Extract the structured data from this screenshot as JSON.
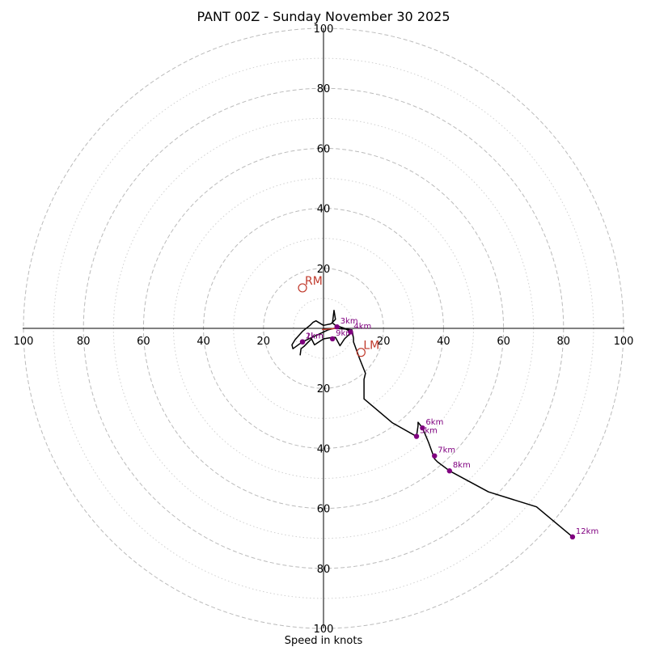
{
  "chart_data": {
    "type": "hodograph",
    "title": "PANT 00Z - Sunday November 30 2025",
    "xlabel": "Speed in knots",
    "rlim": [
      0,
      100
    ],
    "ring_major": [
      20,
      40,
      60,
      80,
      100
    ],
    "ring_minor": [
      10,
      30,
      50,
      70,
      90
    ],
    "tick_labels": {
      "top": [
        "20",
        "40",
        "60",
        "80",
        "100"
      ],
      "bottom": [
        "20",
        "40",
        "60",
        "80",
        "100"
      ],
      "left": [
        "20",
        "40",
        "60",
        "80",
        "100"
      ],
      "right": [
        "20",
        "40",
        "60",
        "80",
        "100"
      ]
    },
    "profile_uv": [
      [
        -7.8,
        9.0
      ],
      [
        -7.5,
        6.8
      ],
      [
        -6.5,
        6.0
      ],
      [
        -5,
        4.5
      ],
      [
        -4,
        3.5
      ],
      [
        -3,
        5.5
      ],
      [
        0,
        3.5
      ],
      [
        3,
        3
      ],
      [
        4,
        3
      ],
      [
        5.5,
        5.8
      ],
      [
        7,
        3.5
      ],
      [
        9,
        1.6
      ],
      [
        8,
        0.5
      ],
      [
        7,
        0
      ],
      [
        4,
        -1
      ],
      [
        3,
        -1.8
      ],
      [
        3.5,
        -6
      ],
      [
        4,
        -3
      ],
      [
        2.5,
        -1.5
      ],
      [
        0,
        -1
      ],
      [
        -2.5,
        -2.5
      ],
      [
        -3.5,
        -2
      ],
      [
        -4.5,
        -1
      ],
      [
        -7,
        1
      ],
      [
        -9.5,
        3.8
      ],
      [
        -10.5,
        5.5
      ],
      [
        -10.2,
        6.8
      ],
      [
        -7,
        4.5
      ],
      [
        1.5,
        0.5
      ],
      [
        3.5,
        0
      ],
      [
        7,
        0.2
      ],
      [
        9.5,
        0.5
      ],
      [
        10,
        3.3
      ],
      [
        10,
        4.5
      ],
      [
        12,
        10
      ],
      [
        14,
        15
      ],
      [
        13.5,
        17
      ],
      [
        13.5,
        23.5
      ],
      [
        23,
        31.5
      ],
      [
        31,
        36
      ],
      [
        31.5,
        32.5
      ],
      [
        31.5,
        31.3
      ],
      [
        33,
        33.2
      ],
      [
        35,
        38
      ],
      [
        37,
        43.5
      ],
      [
        38,
        44.5
      ],
      [
        42,
        47.5
      ],
      [
        55,
        54.5
      ],
      [
        71,
        59.5
      ],
      [
        83,
        69.5
      ]
    ],
    "height_markers": [
      {
        "label": "1km",
        "u": -7,
        "v": 4.5
      },
      {
        "label": "2km",
        "u": -7,
        "v": 4.5
      },
      {
        "label": "3km",
        "u": 4.5,
        "v": -0.5
      },
      {
        "label": "4km",
        "u": 9,
        "v": 1.2
      },
      {
        "label": "5km",
        "u": 31,
        "v": 36
      },
      {
        "label": "6km",
        "u": 33,
        "v": 33.2
      },
      {
        "label": "7km",
        "u": 37,
        "v": 42.5
      },
      {
        "label": "8km",
        "u": 42,
        "v": 47.5
      },
      {
        "label": "9km",
        "u": 3,
        "v": 3.5
      },
      {
        "label": "12km",
        "u": 83,
        "v": 69.5
      }
    ],
    "storm_motion": [
      {
        "label": "LM",
        "u": 12.5,
        "v": 8
      },
      {
        "label": "RM",
        "u": -7,
        "v": -13.5
      }
    ],
    "mean_wind_vector": [
      [
        -0.5,
        0.4
      ],
      [
        4.5,
        0
      ]
    ]
  },
  "colors": {
    "line": "#000000",
    "marker": "#800080",
    "motion": "#c0392b",
    "grid_major": "#bbbbbb",
    "grid_minor": "#d0d0d0"
  }
}
